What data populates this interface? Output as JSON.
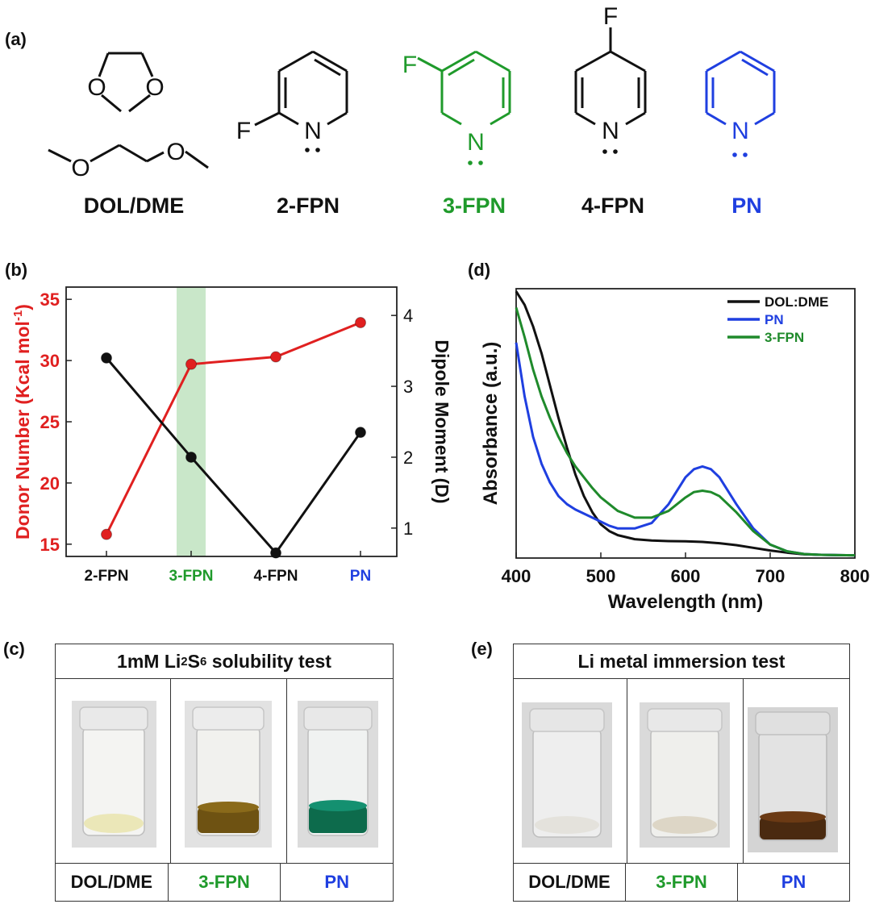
{
  "panels": {
    "a": "(a)",
    "b": "(b)",
    "c": "(c)",
    "d": "(d)",
    "e": "(e)"
  },
  "molecules": [
    {
      "label": "DOL/DME",
      "color": "#111111"
    },
    {
      "label": "2-FPN",
      "color": "#111111"
    },
    {
      "label": "3-FPN",
      "color": "#1f9a2b"
    },
    {
      "label": "4-FPN",
      "color": "#111111"
    },
    {
      "label": "PN",
      "color": "#1f3fe0"
    }
  ],
  "atoms": {
    "F": "F",
    "N": "N",
    "O": "O"
  },
  "chart_data": [
    {
      "type": "line",
      "categories": [
        "2-FPN",
        "3-FPN",
        "4-FPN",
        "PN"
      ],
      "category_colors": [
        "#111111",
        "#1f9a2b",
        "#111111",
        "#1f3fe0"
      ],
      "highlight_category": "3-FPN",
      "series": [
        {
          "name": "Donor Number",
          "axis": "left",
          "color": "#e02020",
          "values": [
            15.8,
            29.7,
            30.3,
            33.1
          ]
        },
        {
          "name": "Dipole Moment",
          "axis": "right",
          "color": "#111111",
          "values": [
            3.4,
            2.0,
            0.65,
            2.35
          ]
        }
      ],
      "ylabel": "Donor Number (Kcal mol",
      "ylabel_sup": "-1",
      "ylabel_end": ")",
      "y2label": "Dipole Moment (D)",
      "ylim": [
        14,
        36
      ],
      "yticks": [
        15,
        20,
        25,
        30,
        35
      ],
      "y2lim": [
        0.6,
        4.4
      ],
      "y2ticks": [
        1,
        2,
        3,
        4
      ]
    },
    {
      "type": "line",
      "xlabel": "Wavelength (nm)",
      "ylabel": "Absorbance (a.u.)",
      "xlim": [
        400,
        800
      ],
      "xticks": [
        400,
        500,
        600,
        700,
        800
      ],
      "ylim": [
        0,
        1
      ],
      "legend_position": "top-right",
      "series": [
        {
          "name": "DOL:DME",
          "color": "#111111",
          "x": [
            400,
            410,
            420,
            430,
            440,
            450,
            460,
            470,
            480,
            490,
            500,
            510,
            520,
            540,
            560,
            580,
            600,
            620,
            640,
            660,
            680,
            700,
            720,
            740,
            760,
            780,
            800
          ],
          "y": [
            0.99,
            0.94,
            0.86,
            0.76,
            0.64,
            0.52,
            0.41,
            0.31,
            0.23,
            0.17,
            0.125,
            0.1,
            0.085,
            0.07,
            0.065,
            0.063,
            0.062,
            0.06,
            0.055,
            0.048,
            0.038,
            0.028,
            0.02,
            0.014,
            0.012,
            0.011,
            0.01
          ]
        },
        {
          "name": "PN",
          "color": "#1f3fe0",
          "x": [
            400,
            410,
            420,
            430,
            440,
            450,
            460,
            470,
            480,
            490,
            500,
            510,
            520,
            540,
            560,
            580,
            600,
            610,
            620,
            630,
            640,
            660,
            680,
            700,
            720,
            740,
            760,
            780,
            800
          ],
          "y": [
            0.8,
            0.6,
            0.45,
            0.35,
            0.28,
            0.23,
            0.2,
            0.18,
            0.165,
            0.15,
            0.135,
            0.12,
            0.11,
            0.11,
            0.13,
            0.2,
            0.3,
            0.33,
            0.34,
            0.33,
            0.3,
            0.2,
            0.11,
            0.05,
            0.025,
            0.015,
            0.012,
            0.011,
            0.01
          ]
        },
        {
          "name": "3-FPN",
          "color": "#1f8a2b",
          "x": [
            400,
            410,
            420,
            430,
            440,
            450,
            460,
            470,
            480,
            490,
            500,
            520,
            540,
            560,
            580,
            600,
            610,
            620,
            630,
            640,
            660,
            680,
            700,
            720,
            740,
            760,
            780,
            800
          ],
          "y": [
            0.93,
            0.82,
            0.7,
            0.6,
            0.52,
            0.45,
            0.39,
            0.34,
            0.3,
            0.26,
            0.225,
            0.175,
            0.15,
            0.15,
            0.175,
            0.225,
            0.245,
            0.25,
            0.245,
            0.23,
            0.17,
            0.1,
            0.05,
            0.025,
            0.015,
            0.012,
            0.011,
            0.01
          ]
        }
      ]
    }
  ],
  "tests": {
    "c": {
      "title_pre": "1mM Li",
      "sub1": "2",
      "title_mid": "S",
      "sub2": "6",
      "title_post": " solubility test",
      "columns": [
        "DOL/DME",
        "3-FPN",
        "PN"
      ]
    },
    "e": {
      "title": "Li metal immersion test",
      "columns": [
        "DOL/DME",
        "3-FPN",
        "PN"
      ]
    }
  },
  "colors": {
    "black": "#111111",
    "green": "#1f9a2b",
    "blue": "#1f3fe0",
    "red": "#e02020"
  }
}
